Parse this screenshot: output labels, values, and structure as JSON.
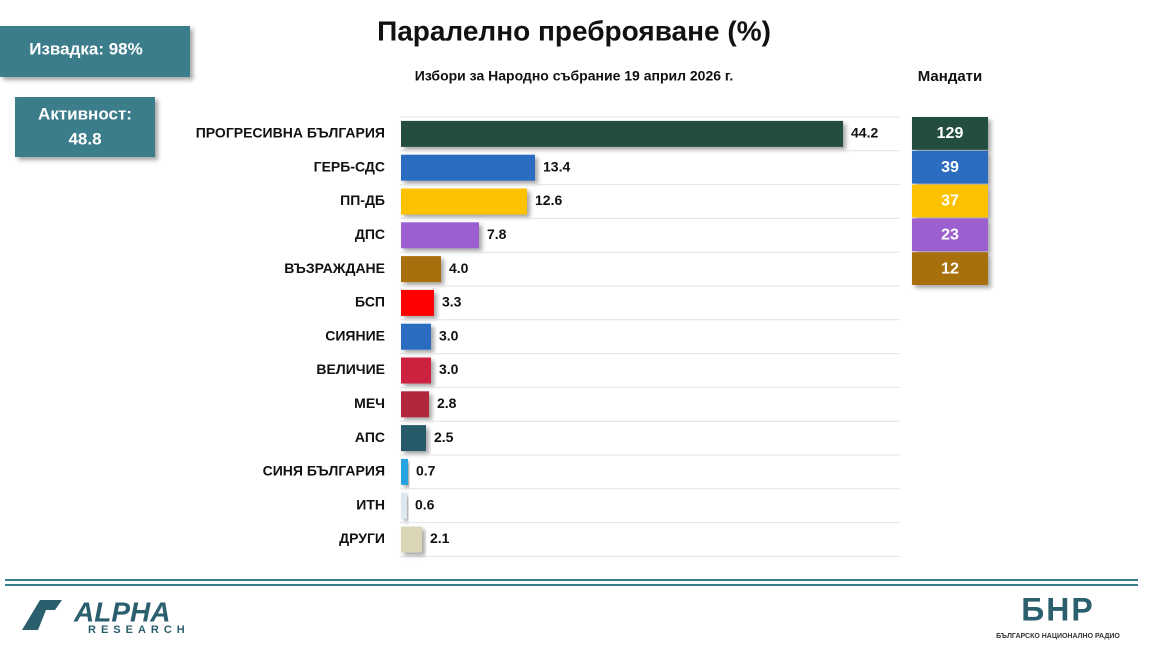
{
  "badges": {
    "sample": "Извадка: 98%",
    "turnout_label": "Активност:",
    "turnout_value": "48.8"
  },
  "chart_data": {
    "type": "bar",
    "orientation": "horizontal",
    "title": "Паралелно преброяване (%)",
    "subtitle": "Избори за Народно събрание 19 април 2026 г.",
    "categories": [
      "ПРОГРЕСИВНА БЪЛГАРИЯ",
      "ГЕРБ-СДС",
      "ПП-ДБ",
      "ДПС",
      "ВЪЗРАЖДАНЕ",
      "БСП",
      "СИЯНИЕ",
      "ВЕЛИЧИЕ",
      "МЕЧ",
      "АПС",
      "СИНЯ БЪЛГАРИЯ",
      "ИТН",
      "ДРУГИ"
    ],
    "values": [
      44.2,
      13.4,
      12.6,
      7.8,
      4.0,
      3.3,
      3.0,
      3.0,
      2.8,
      2.5,
      0.7,
      0.6,
      2.1
    ],
    "value_labels": [
      "44.2",
      "13.4",
      "12.6",
      "7.8",
      "4.0",
      "3.3",
      "3.0",
      "3.0",
      "2.8",
      "2.5",
      "0.7",
      "0.6",
      "2.1"
    ],
    "colors": [
      "#244d3f",
      "#2a6cc0",
      "#fcc200",
      "#9b5fcf",
      "#a8700c",
      "#ff0000",
      "#2a6cc0",
      "#cc2340",
      "#b0253a",
      "#285a68",
      "#27a3e0",
      "#dde7ee",
      "#dcd6b8"
    ],
    "seats": {
      "title": "Мандати",
      "values": [
        129,
        39,
        37,
        23,
        12
      ],
      "colors": [
        "#244d3f",
        "#2a6cc0",
        "#fcc200",
        "#9b5fcf",
        "#a8700c"
      ]
    }
  },
  "logos": {
    "alpha": "ALPHA",
    "research": "RESEARCH",
    "bnr": "БНР",
    "bnr_full": "БЪЛГАРСКО НАЦИОНАЛНО РАДИО"
  }
}
